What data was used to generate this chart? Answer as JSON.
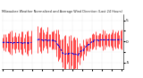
{
  "title": "Milwaukee Weather Normalized and Average Wind Direction (Last 24 Hours)",
  "n_points": 96,
  "ylim": [
    -6.5,
    6.5
  ],
  "yticks": [
    5,
    2.5,
    0,
    -2.5,
    -5
  ],
  "ytick_labels": [
    "5",
    "",
    "0",
    "",
    "-5"
  ],
  "background_color": "#ffffff",
  "bar_color": "#ff0000",
  "line_color": "#0000dd",
  "grid_color": "#bbbbbb",
  "seed": 7
}
